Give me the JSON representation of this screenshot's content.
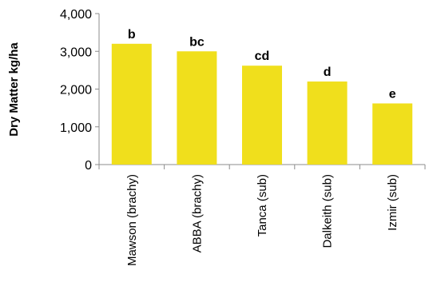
{
  "chart_data": {
    "type": "bar",
    "title": "",
    "xlabel": "",
    "ylabel": "Dry Matter kg/ha",
    "categories": [
      "Mawson (brachy)",
      "ABBA (brachy)",
      "Tanca (sub)",
      "Dalkeith (sub)",
      "Izmir (sub)"
    ],
    "values": [
      3200,
      3000,
      2620,
      2200,
      1620
    ],
    "data_labels": [
      "b",
      "bc",
      "cd",
      "d",
      "e"
    ],
    "ylim": [
      0,
      4000
    ],
    "yticks": [
      0,
      1000,
      2000,
      3000,
      4000
    ],
    "ytick_labels": [
      "0",
      "1,000",
      "2,000",
      "3,000",
      "4,000"
    ],
    "grid": false,
    "legend": "none",
    "bar_color": "#F0DF1C"
  }
}
